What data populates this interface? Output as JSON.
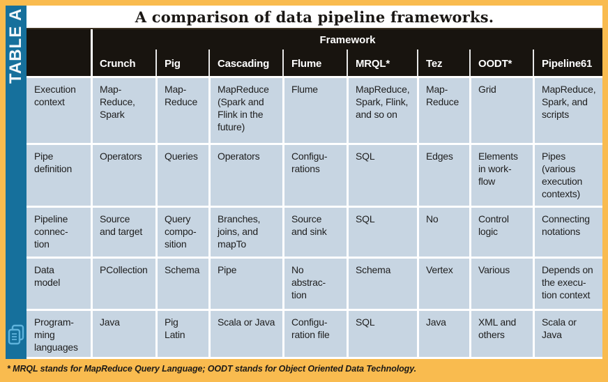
{
  "table_label": "TABLE A",
  "title": "A comparison of data pipeline frameworks.",
  "header": {
    "group_label": "Framework",
    "columns": [
      "Crunch",
      "Pig",
      "Cascading",
      "Flume",
      "MRQL*",
      "Tez",
      "OODT*",
      "Pipeline61"
    ]
  },
  "rows": [
    {
      "label": "Execution\ncontext",
      "cells": [
        "Map-\nReduce,\nSpark",
        "Map-\nReduce",
        "MapReduce\n(Spark and\nFlink in the\nfuture)",
        "Flume",
        "MapReduce,\nSpark, Flink,\nand so on",
        "Map-\nReduce",
        "Grid",
        "MapReduce,\nSpark, and\nscripts"
      ]
    },
    {
      "label": "Pipe\ndefinition",
      "cells": [
        "Operators",
        "Queries",
        "Operators",
        "Configu-\nrations",
        "SQL",
        "Edges",
        "Elements\nin work-\nflow",
        "Pipes\n(various\nexecution\ncontexts)"
      ]
    },
    {
      "label": "Pipeline\nconnec-\ntion",
      "cells": [
        "Source\nand target",
        "Query\ncompo-\nsition",
        "Branches,\njoins, and\nmapTo",
        "Source\nand sink",
        "SQL",
        "No",
        "Control\nlogic",
        "Connecting\nnotations"
      ]
    },
    {
      "label": "Data\nmodel",
      "cells": [
        "PCollection",
        "Schema",
        "Pipe",
        "No\nabstrac-\ntion",
        "Schema",
        "Vertex",
        "Various",
        "Depends on\nthe execu-\ntion context"
      ]
    },
    {
      "label": "Program-\nming\nlanguages",
      "cells": [
        "Java",
        "Pig\nLatin",
        "Scala or Java",
        "Configu-\nration file",
        "SQL",
        "Java",
        "XML and\nothers",
        "Scala or\nJava"
      ]
    }
  ],
  "footnote": "* MRQL stands for MapReduce Query Language; OODT stands for Object Oriented Data Technology.",
  "icons": {
    "corner": "stacked-documents-icon"
  },
  "colors": {
    "border_orange": "#F9BB4F",
    "strip_blue": "#16709C",
    "header_black": "#18140F",
    "cell_blue_gray": "#C7D5E2",
    "icon_light_blue": "#5FB3DC"
  }
}
